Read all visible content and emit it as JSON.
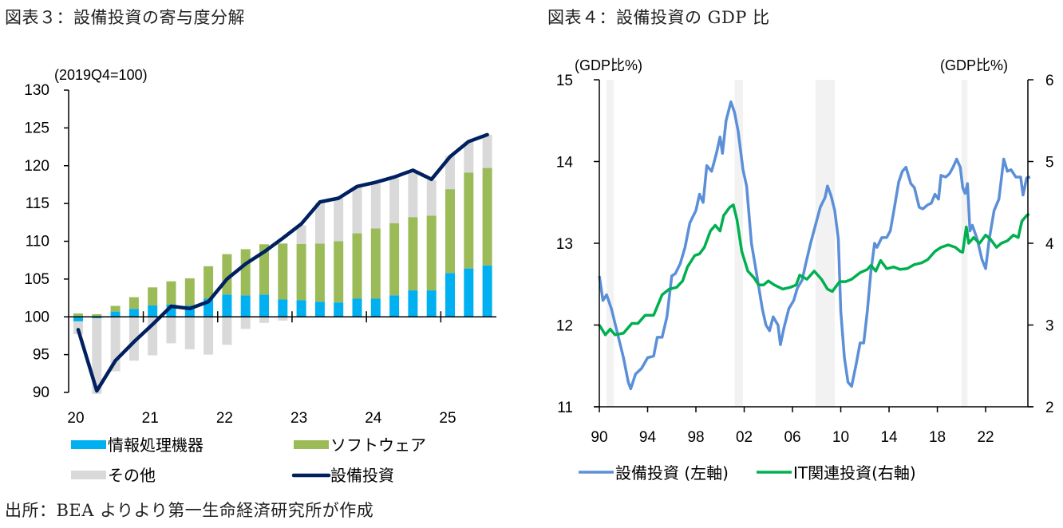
{
  "figure_left_title": "図表３：設備投資の寄与度分解",
  "figure_right_title": "図表４：設備投資の GDP 比",
  "source_note": "出所：BEA よりより第一生命経済研究所が作成",
  "colors": {
    "it_equipment": "#00b0f0",
    "software": "#9bbb59",
    "other": "#d9d9d9",
    "capex_line": "#002060",
    "capex_gdp": "#5b8fd8",
    "it_gdp": "#00b050",
    "recession_band": "#f2f2f2"
  },
  "chart_data": [
    {
      "type": "bar",
      "stacked": true,
      "title": "図表３：設備投資の寄与度分解",
      "ylabel": "(2019Q4=100)",
      "xlabel": "",
      "ylim": [
        90,
        130
      ],
      "yticks": [
        90,
        95,
        100,
        105,
        110,
        115,
        120,
        125,
        130
      ],
      "baseline": 100,
      "x_tick_labels": [
        "20",
        "21",
        "22",
        "23",
        "24",
        "25"
      ],
      "categories": [
        "2020Q1",
        "2020Q2",
        "2020Q3",
        "2020Q4",
        "2021Q1",
        "2021Q2",
        "2021Q3",
        "2021Q4",
        "2022Q1",
        "2022Q2",
        "2022Q3",
        "2022Q4",
        "2023Q1",
        "2023Q2",
        "2023Q3",
        "2023Q4",
        "2024Q1",
        "2024Q2",
        "2024Q3",
        "2024Q4",
        "2025Q1",
        "2025Q2",
        "2025Q3"
      ],
      "series": [
        {
          "name": "情報処理機器",
          "kind": "bar",
          "color_key": "it_equipment",
          "values": [
            -0.6,
            -0.2,
            0.7,
            1.05,
            1.5,
            1.65,
            1.5,
            2.4,
            2.95,
            2.85,
            2.95,
            2.3,
            2.2,
            2.0,
            1.9,
            2.4,
            2.4,
            2.85,
            3.5,
            3.5,
            5.8,
            6.4,
            6.8
          ]
        },
        {
          "name": "ソフトウェア",
          "kind": "bar",
          "color_key": "software",
          "values": [
            0.45,
            0.35,
            0.75,
            1.55,
            2.4,
            3.05,
            3.6,
            4.3,
            5.35,
            6.1,
            6.65,
            7.4,
            7.45,
            7.7,
            8.1,
            8.65,
            9.3,
            9.55,
            9.7,
            9.9,
            11.1,
            12.7,
            12.9
          ]
        },
        {
          "name": "その他",
          "kind": "bar",
          "color_key": "other",
          "values": [
            -1.7,
            -10.0,
            -7.2,
            -5.8,
            -5.1,
            -3.5,
            -4.3,
            -5.0,
            -3.7,
            -1.6,
            -0.8,
            -0.5,
            2.45,
            5.4,
            5.7,
            6.05,
            5.9,
            5.9,
            6.0,
            4.7,
            4.4,
            4.1,
            4.4
          ]
        },
        {
          "name": "設備投資",
          "kind": "line",
          "color_key": "capex_line",
          "values": [
            98.3,
            90.2,
            94.2,
            96.7,
            99.0,
            101.4,
            101.1,
            102.0,
            105.0,
            107.0,
            108.6,
            110.4,
            112.3,
            115.2,
            115.7,
            117.25,
            117.8,
            118.5,
            119.4,
            118.2,
            121.2,
            123.2,
            124.1
          ]
        }
      ],
      "legend": {
        "placement": "bottom",
        "columns": 2
      }
    },
    {
      "type": "line",
      "title": "図表４：設備投資の GDP 比",
      "ylabel": "(GDP比%)",
      "y2label": "(GDP比%)",
      "xlabel": "",
      "ylim": [
        11,
        15
      ],
      "y2lim": [
        2,
        6
      ],
      "yticks": [
        11,
        12,
        13,
        14,
        15
      ],
      "y2ticks": [
        2,
        3,
        4,
        5,
        6
      ],
      "xlim": [
        1990,
        2025.5
      ],
      "x_ticks": [
        1990,
        1994,
        1998,
        2002,
        2006,
        2010,
        2014,
        2018,
        2022
      ],
      "x_tick_labels": [
        "90",
        "94",
        "98",
        "02",
        "06",
        "10",
        "14",
        "18",
        "22"
      ],
      "shaded_periods": [
        [
          1990.6,
          1991.2
        ],
        [
          2001.2,
          2001.9
        ],
        [
          2007.9,
          2009.5
        ],
        [
          2020.0,
          2020.5
        ]
      ],
      "series": [
        {
          "name": "設備投資 (左軸)",
          "axis": "left",
          "color_key": "capex_gdp",
          "x": [
            1990.0,
            1990.3,
            1990.6,
            1991.0,
            1991.5,
            1992.0,
            1992.4,
            1992.6,
            1993.0,
            1993.5,
            1994.0,
            1994.5,
            1994.8,
            1995.2,
            1995.6,
            1996.0,
            1996.3,
            1996.7,
            1997.1,
            1997.5,
            1998.0,
            1998.3,
            1998.6,
            1998.9,
            1999.3,
            1999.7,
            2000.0,
            2000.2,
            2000.5,
            2000.9,
            2001.2,
            2001.5,
            2001.9,
            2002.2,
            2002.6,
            2003.0,
            2003.5,
            2003.8,
            2004.1,
            2004.4,
            2004.8,
            2005.0,
            2005.3,
            2005.7,
            2006.1,
            2006.4,
            2006.8,
            2007.1,
            2007.5,
            2007.9,
            2008.3,
            2008.7,
            2008.9,
            2009.2,
            2009.5,
            2009.8,
            2010.0,
            2010.3,
            2010.6,
            2010.9,
            2011.3,
            2011.6,
            2011.9,
            2012.2,
            2012.5,
            2012.8,
            2013.0,
            2013.4,
            2013.8,
            2014.1,
            2014.4,
            2014.8,
            2015.1,
            2015.4,
            2015.8,
            2016.1,
            2016.5,
            2016.8,
            2017.2,
            2017.5,
            2017.8,
            2018.1,
            2018.3,
            2018.7,
            2019.0,
            2019.3,
            2019.6,
            2019.9,
            2020.1,
            2020.3,
            2020.5,
            2020.7,
            2020.9,
            2021.3,
            2021.7,
            2022.0,
            2022.3,
            2022.7,
            2023.1,
            2023.5,
            2023.8,
            2024.1,
            2024.5,
            2024.9,
            2025.1,
            2025.4,
            2025.7
          ],
          "y": [
            12.6,
            12.3,
            12.37,
            12.2,
            11.9,
            11.6,
            11.3,
            11.22,
            11.4,
            11.47,
            11.6,
            11.62,
            11.85,
            11.85,
            12.1,
            12.6,
            12.63,
            12.75,
            12.95,
            13.25,
            13.4,
            13.6,
            13.5,
            13.95,
            13.88,
            14.1,
            14.3,
            14.1,
            14.5,
            14.73,
            14.6,
            14.37,
            13.9,
            13.7,
            13.0,
            12.65,
            12.2,
            12.0,
            11.93,
            12.1,
            12.0,
            11.76,
            11.97,
            12.2,
            12.3,
            12.45,
            12.55,
            12.75,
            13.0,
            13.22,
            13.44,
            13.56,
            13.7,
            13.58,
            13.4,
            13.05,
            12.17,
            11.6,
            11.3,
            11.25,
            11.54,
            11.78,
            11.78,
            12.17,
            12.66,
            13.0,
            12.95,
            13.07,
            13.07,
            13.15,
            13.4,
            13.75,
            13.88,
            13.93,
            13.73,
            13.68,
            13.44,
            13.42,
            13.47,
            13.49,
            13.6,
            13.54,
            13.83,
            13.81,
            13.85,
            13.93,
            14.03,
            13.93,
            13.68,
            13.61,
            13.73,
            13.15,
            13.22,
            13.05,
            12.8,
            12.69,
            13.05,
            13.4,
            13.54,
            14.03,
            13.88,
            13.9,
            13.81,
            13.81,
            13.59,
            13.8,
            13.81
          ]
        },
        {
          "name": "IT関連投資(右軸)",
          "axis": "right",
          "color_key": "it_gdp",
          "x": [
            1990.0,
            1990.5,
            1990.9,
            1991.3,
            1992.0,
            1992.7,
            1993.2,
            1993.8,
            1994.5,
            1995.2,
            1995.8,
            1996.4,
            1996.9,
            1997.3,
            1997.9,
            1998.3,
            1998.7,
            1999.2,
            1999.6,
            2000.0,
            2000.3,
            2000.8,
            2001.1,
            2001.4,
            2001.8,
            2002.3,
            2002.8,
            2003.2,
            2003.6,
            2004.0,
            2004.5,
            2005.2,
            2005.8,
            2006.3,
            2006.6,
            2007.2,
            2007.8,
            2008.4,
            2008.9,
            2009.3,
            2009.9,
            2010.4,
            2010.9,
            2011.6,
            2012.2,
            2012.5,
            2012.9,
            2013.3,
            2013.8,
            2014.4,
            2014.9,
            2015.5,
            2016.1,
            2016.7,
            2017.2,
            2017.8,
            2018.3,
            2018.9,
            2019.5,
            2019.9,
            2020.1,
            2020.4,
            2020.6,
            2021.0,
            2021.5,
            2022.0,
            2022.4,
            2022.9,
            2023.3,
            2023.8,
            2024.3,
            2024.7,
            2025.0,
            2025.4,
            2025.6
          ],
          "y": [
            3.0,
            2.88,
            2.95,
            2.88,
            2.9,
            3.02,
            3.02,
            3.12,
            3.12,
            3.37,
            3.44,
            3.46,
            3.54,
            3.71,
            3.85,
            3.87,
            3.95,
            4.15,
            4.22,
            4.15,
            4.34,
            4.44,
            4.47,
            4.29,
            3.9,
            3.66,
            3.58,
            3.49,
            3.49,
            3.54,
            3.49,
            3.44,
            3.46,
            3.49,
            3.61,
            3.56,
            3.66,
            3.56,
            3.44,
            3.41,
            3.53,
            3.53,
            3.56,
            3.64,
            3.68,
            3.73,
            3.66,
            3.79,
            3.69,
            3.71,
            3.68,
            3.69,
            3.74,
            3.76,
            3.8,
            3.9,
            3.95,
            3.98,
            3.95,
            3.9,
            3.89,
            4.2,
            4.0,
            4.07,
            4.0,
            4.1,
            4.05,
            3.95,
            4.0,
            4.03,
            4.1,
            4.07,
            4.27,
            4.34,
            4.36
          ]
        }
      ],
      "legend": {
        "placement": "bottom",
        "columns": 2
      }
    }
  ]
}
